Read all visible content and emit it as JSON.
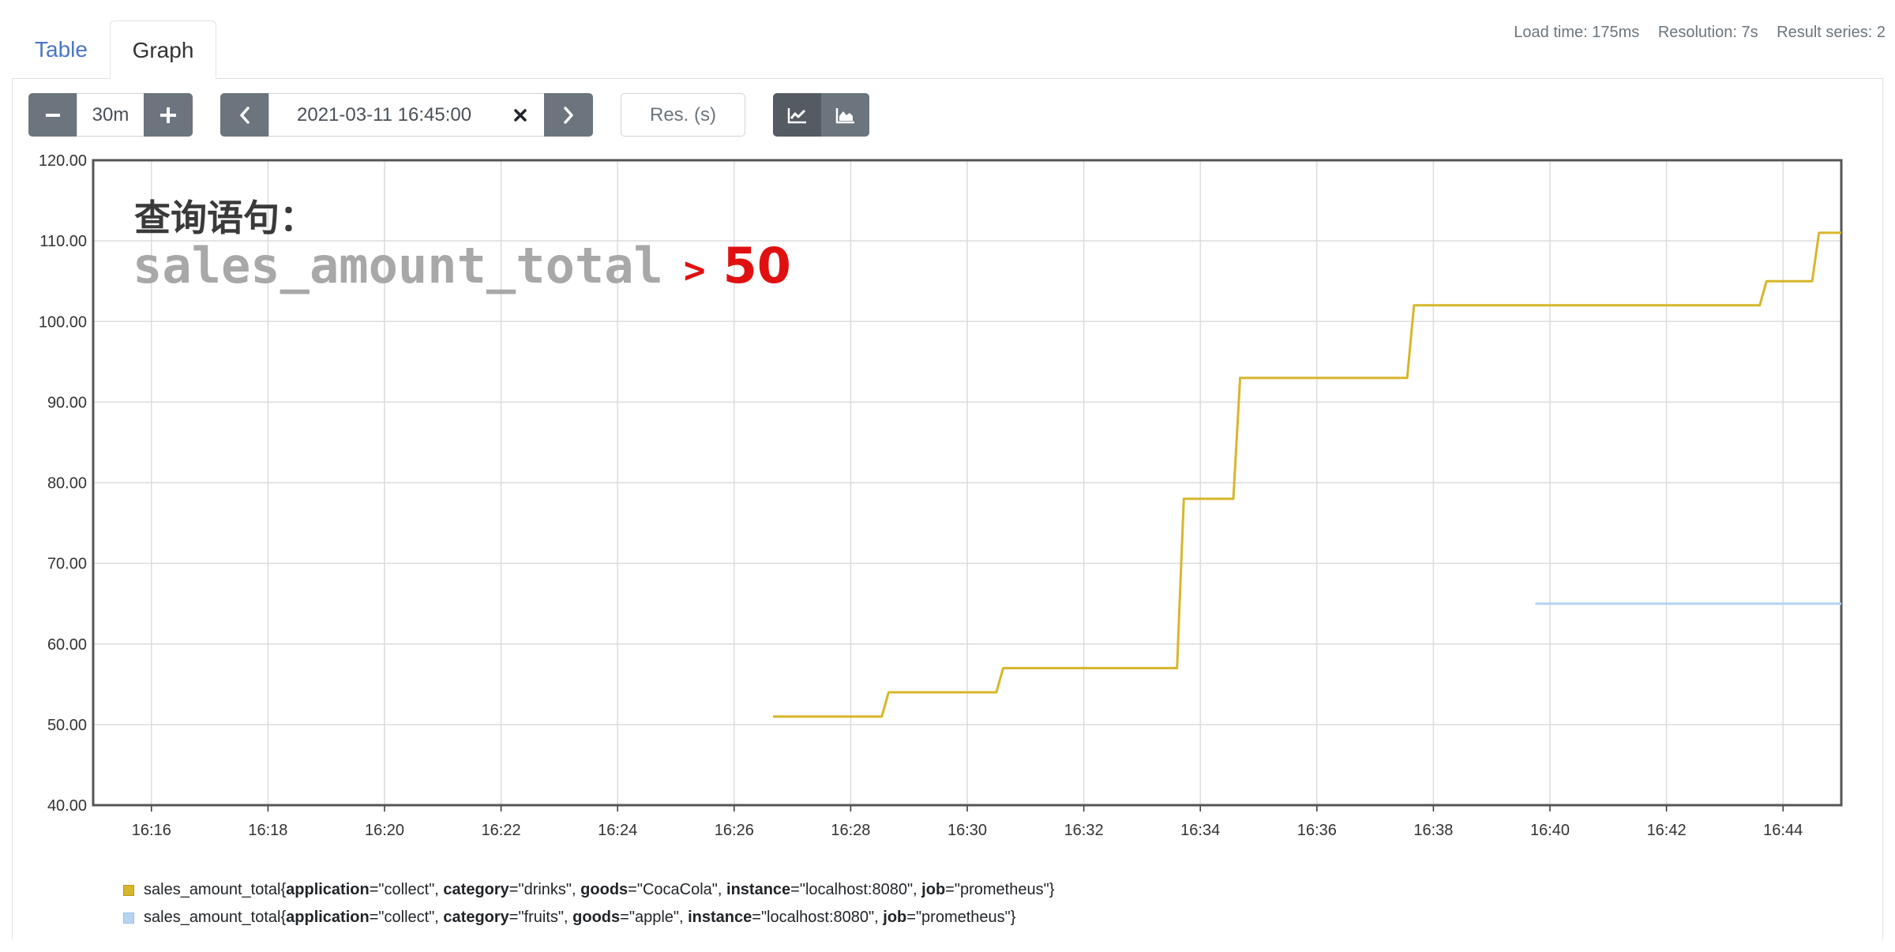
{
  "tabs": [
    {
      "label": "Table"
    },
    {
      "label": "Graph"
    }
  ],
  "stats": {
    "load_time": "Load time: 175ms",
    "resolution": "Resolution: 7s",
    "result_series": "Result series: 2"
  },
  "controls": {
    "range_value": "30m",
    "end_time": "2021-03-11 16:45:00",
    "resolution_placeholder": "Res. (s)",
    "icons": [
      "minus-icon",
      "plus-icon",
      "chevron-left-icon",
      "close-icon",
      "chevron-right-icon",
      "line-chart-icon",
      "area-chart-icon"
    ]
  },
  "overlay": {
    "title": "查询语句：",
    "metric": "sales_amount_total",
    "operator": ">",
    "value": "50"
  },
  "legend": [
    {
      "color": "#d8b62a",
      "metric": "sales_amount_total",
      "labels": [
        {
          "key": "application",
          "value": "\"collect\""
        },
        {
          "key": "category",
          "value": "\"drinks\""
        },
        {
          "key": "goods",
          "value": "\"CocaCola\""
        },
        {
          "key": "instance",
          "value": "\"localhost:8080\""
        },
        {
          "key": "job",
          "value": "\"prometheus\""
        }
      ]
    },
    {
      "color": "#b6d3f2",
      "metric": "sales_amount_total",
      "labels": [
        {
          "key": "application",
          "value": "\"collect\""
        },
        {
          "key": "category",
          "value": "\"fruits\""
        },
        {
          "key": "goods",
          "value": "\"apple\""
        },
        {
          "key": "instance",
          "value": "\"localhost:8080\""
        },
        {
          "key": "job",
          "value": "\"prometheus\""
        }
      ]
    }
  ],
  "chart_data": {
    "type": "line",
    "ylim": [
      40,
      120
    ],
    "yticks": [
      "40.00",
      "50.00",
      "60.00",
      "70.00",
      "80.00",
      "90.00",
      "100.00",
      "110.00",
      "120.00"
    ],
    "xticks": [
      "16:16",
      "16:18",
      "16:20",
      "16:22",
      "16:24",
      "16:26",
      "16:28",
      "16:30",
      "16:32",
      "16:34",
      "16:36",
      "16:38",
      "16:40",
      "16:42",
      "16:44"
    ],
    "xlim": [
      "16:15",
      "16:45"
    ],
    "grid": true,
    "series": [
      {
        "name": "sales_amount_total{application=\"collect\", category=\"drinks\", goods=\"CocaCola\", instance=\"localhost:8080\", job=\"prometheus\"}",
        "color": "#d8b62a",
        "points": [
          [
            "16:26:40",
            51
          ],
          [
            "16:28:32",
            51
          ],
          [
            "16:28:39",
            54
          ],
          [
            "16:30:30",
            54
          ],
          [
            "16:30:37",
            57
          ],
          [
            "16:33:36",
            57
          ],
          [
            "16:33:43",
            78
          ],
          [
            "16:34:34",
            78
          ],
          [
            "16:34:41",
            93
          ],
          [
            "16:37:33",
            93
          ],
          [
            "16:37:40",
            102
          ],
          [
            "16:43:36",
            102
          ],
          [
            "16:43:43",
            105
          ],
          [
            "16:44:30",
            105
          ],
          [
            "16:44:37",
            111
          ],
          [
            "16:45:00",
            111
          ]
        ]
      },
      {
        "name": "sales_amount_total{application=\"collect\", category=\"fruits\", goods=\"apple\", instance=\"localhost:8080\", job=\"prometheus\"}",
        "color": "#b6d3f2",
        "points": [
          [
            "16:39:45",
            65
          ],
          [
            "16:45:00",
            65
          ]
        ]
      }
    ]
  }
}
